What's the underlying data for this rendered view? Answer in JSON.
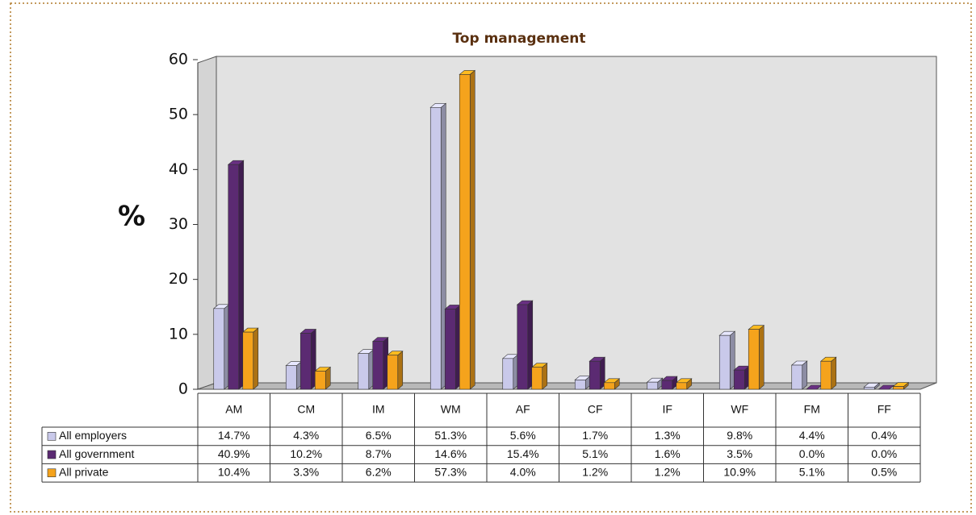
{
  "chart_data": {
    "type": "bar3d",
    "title": "Top management",
    "ylabel": "%",
    "categories": [
      "AM",
      "CM",
      "IM",
      "WM",
      "AF",
      "CF",
      "IF",
      "WF",
      "FM",
      "FF"
    ],
    "series": [
      {
        "name": "All employers",
        "color": "#c9c9ea",
        "values": [
          14.7,
          4.3,
          6.5,
          51.3,
          5.6,
          1.7,
          1.3,
          9.8,
          4.4,
          0.4
        ],
        "value_labels": [
          "14.7%",
          "4.3%",
          "6.5%",
          "51.3%",
          "5.6%",
          "1.7%",
          "1.3%",
          "9.8%",
          "4.4%",
          "0.4%"
        ]
      },
      {
        "name": "All government",
        "color": "#5b2a72",
        "values": [
          40.9,
          10.2,
          8.7,
          14.6,
          15.4,
          5.1,
          1.6,
          3.5,
          0.0,
          0.0
        ],
        "value_labels": [
          "40.9%",
          "10.2%",
          "8.7%",
          "14.6%",
          "15.4%",
          "5.1%",
          "1.6%",
          "3.5%",
          "0.0%",
          "0.0%"
        ]
      },
      {
        "name": "All private",
        "color": "#f5a31c",
        "values": [
          10.4,
          3.3,
          6.2,
          57.3,
          4.0,
          1.2,
          1.2,
          10.9,
          5.1,
          0.5
        ],
        "value_labels": [
          "10.4%",
          "3.3%",
          "6.2%",
          "57.3%",
          "4.0%",
          "1.2%",
          "1.2%",
          "10.9%",
          "5.1%",
          "0.5%"
        ]
      }
    ],
    "ylim": [
      0,
      60
    ],
    "yticks": [
      0,
      10,
      20,
      30,
      40,
      50,
      60
    ],
    "grid": false
  }
}
